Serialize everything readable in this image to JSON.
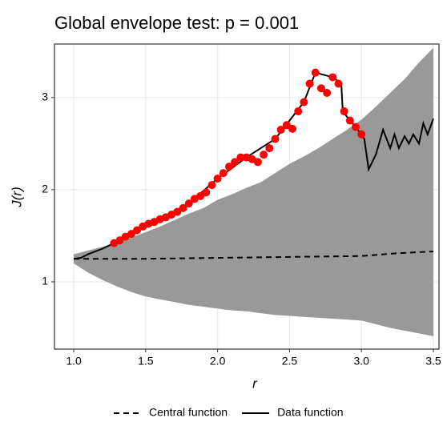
{
  "chart_data": {
    "type": "envelope",
    "title": "Global envelope test: p = 0.001",
    "xlabel": "r",
    "ylabel": "J(r)",
    "xlim": [
      0.866,
      3.539
    ],
    "ylim": [
      0.27,
      3.58
    ],
    "xticks": [
      {
        "value": 1,
        "label": "1.0"
      },
      1.5,
      {
        "value": 2,
        "label": "2.0"
      },
      2.5,
      {
        "value": 3,
        "label": "3.0"
      },
      3.5
    ],
    "yticks": [
      1,
      2,
      3
    ],
    "grid": true,
    "envelope": {
      "color": "#999999",
      "x": [
        1.0,
        1.1,
        1.2,
        1.3,
        1.4,
        1.5,
        1.6,
        1.7,
        1.8,
        1.9,
        2.0,
        2.1,
        2.2,
        2.3,
        2.4,
        2.5,
        2.6,
        2.7,
        2.8,
        2.9,
        3.0,
        3.1,
        3.2,
        3.3,
        3.4,
        3.5
      ],
      "upper": [
        1.3,
        1.34,
        1.38,
        1.42,
        1.48,
        1.54,
        1.6,
        1.67,
        1.74,
        1.8,
        1.89,
        1.95,
        2.02,
        2.08,
        2.18,
        2.28,
        2.36,
        2.45,
        2.55,
        2.65,
        2.76,
        2.9,
        3.05,
        3.2,
        3.38,
        3.54
      ],
      "lower": [
        1.2,
        1.1,
        1.02,
        0.95,
        0.89,
        0.84,
        0.81,
        0.78,
        0.75,
        0.73,
        0.71,
        0.69,
        0.68,
        0.66,
        0.64,
        0.63,
        0.62,
        0.61,
        0.6,
        0.59,
        0.58,
        0.54,
        0.5,
        0.47,
        0.44,
        0.41
      ]
    },
    "series": [
      {
        "name": "Central function",
        "color": "#000000",
        "dash": true,
        "x": [
          1.0,
          1.5,
          2.0,
          2.5,
          3.0,
          3.25,
          3.5
        ],
        "values": [
          1.25,
          1.25,
          1.26,
          1.27,
          1.28,
          1.31,
          1.33
        ]
      },
      {
        "name": "Data function",
        "color": "#000000",
        "dash": false,
        "x": [
          1.0,
          1.05,
          1.1,
          1.2,
          1.28,
          1.4,
          1.6,
          1.8,
          2.0,
          2.2,
          2.4,
          2.6,
          2.68,
          2.8,
          2.86,
          2.87,
          2.92,
          3.0,
          3.02,
          3.05,
          3.1,
          3.15,
          3.2,
          3.23,
          3.26,
          3.3,
          3.33,
          3.36,
          3.4,
          3.43,
          3.46,
          3.5
        ],
        "values": [
          1.25,
          1.26,
          1.3,
          1.36,
          1.42,
          1.52,
          1.68,
          1.85,
          2.12,
          2.35,
          2.55,
          2.95,
          3.27,
          3.22,
          3.15,
          2.85,
          2.75,
          2.6,
          2.55,
          2.22,
          2.38,
          2.65,
          2.45,
          2.6,
          2.45,
          2.58,
          2.5,
          2.6,
          2.5,
          2.72,
          2.6,
          2.77
        ]
      }
    ],
    "outside": {
      "color": "#ff0000",
      "x": [
        1.28,
        1.32,
        1.36,
        1.4,
        1.44,
        1.48,
        1.52,
        1.56,
        1.6,
        1.64,
        1.68,
        1.72,
        1.76,
        1.8,
        1.84,
        1.88,
        1.92,
        1.96,
        2.0,
        2.04,
        2.08,
        2.12,
        2.16,
        2.2,
        2.24,
        2.28,
        2.32,
        2.36,
        2.4,
        2.44,
        2.48,
        2.52,
        2.56,
        2.6,
        2.64,
        2.68,
        2.72,
        2.76,
        2.8,
        2.84,
        2.88,
        2.92,
        2.96,
        3.0
      ],
      "values": [
        1.42,
        1.45,
        1.49,
        1.52,
        1.56,
        1.6,
        1.63,
        1.65,
        1.68,
        1.7,
        1.73,
        1.76,
        1.8,
        1.85,
        1.9,
        1.93,
        1.97,
        2.05,
        2.12,
        2.18,
        2.25,
        2.3,
        2.35,
        2.35,
        2.33,
        2.3,
        2.38,
        2.45,
        2.55,
        2.65,
        2.7,
        2.66,
        2.85,
        2.95,
        3.15,
        3.27,
        3.1,
        3.05,
        3.22,
        3.15,
        2.85,
        2.75,
        2.68,
        2.6
      ]
    }
  }
}
